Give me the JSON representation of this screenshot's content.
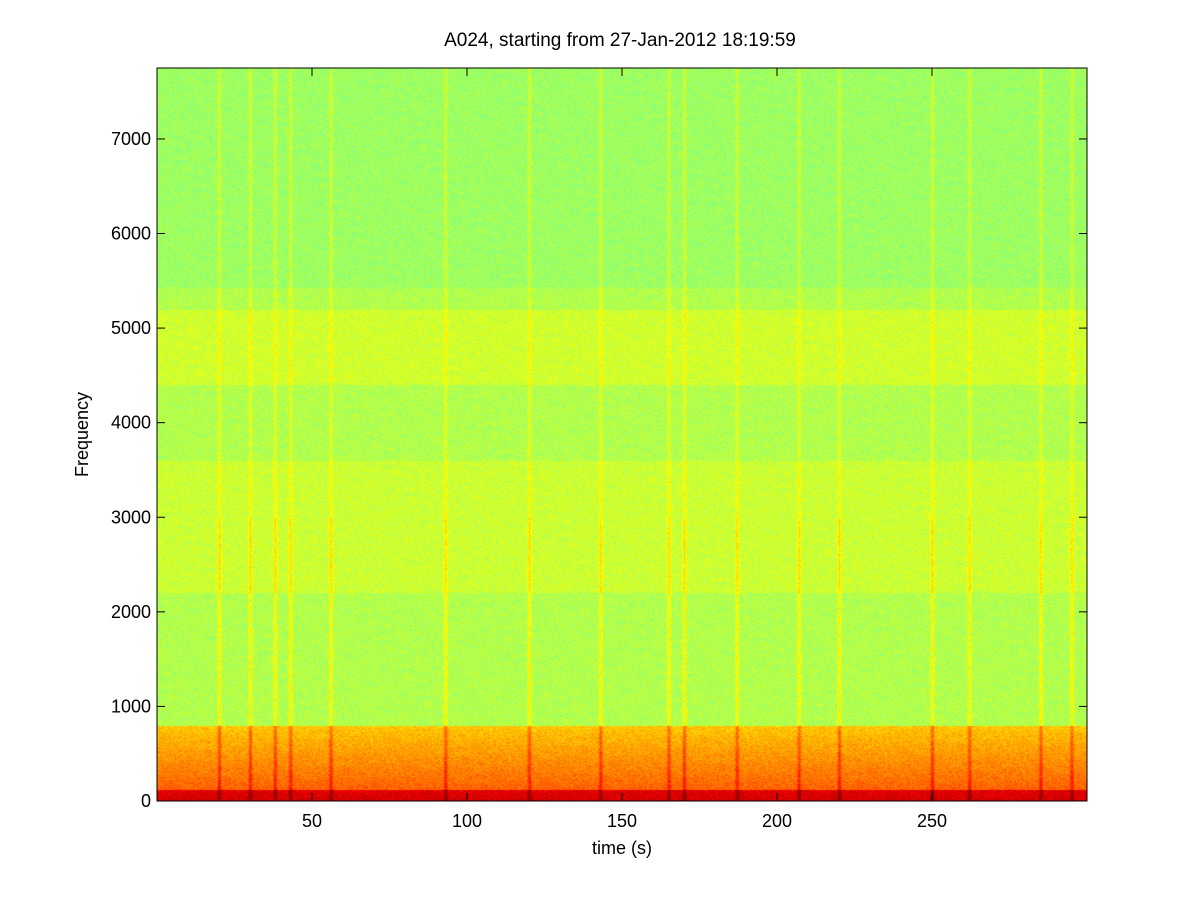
{
  "chart_data": {
    "type": "heatmap",
    "title": "A024, starting from 27-Jan-2012 18:19:59",
    "xlabel": "time (s)",
    "ylabel": "Frequency",
    "xlim": [
      0,
      300
    ],
    "ylim": [
      0,
      7750
    ],
    "x_ticks": [
      50,
      100,
      150,
      200,
      250
    ],
    "y_ticks": [
      0,
      1000,
      2000,
      3000,
      4000,
      5000,
      6000,
      7000
    ],
    "colormap": "jet",
    "grid": false,
    "intensity_description": {
      "low_frequency_band_hz": [
        0,
        800
      ],
      "band_color": "yellow-red",
      "background_color": "green-cyan",
      "vertical_transient_times_s": [
        20,
        30,
        38,
        43,
        56,
        93,
        120,
        143,
        165,
        170,
        187,
        207,
        220,
        250,
        262,
        285,
        295
      ]
    }
  }
}
